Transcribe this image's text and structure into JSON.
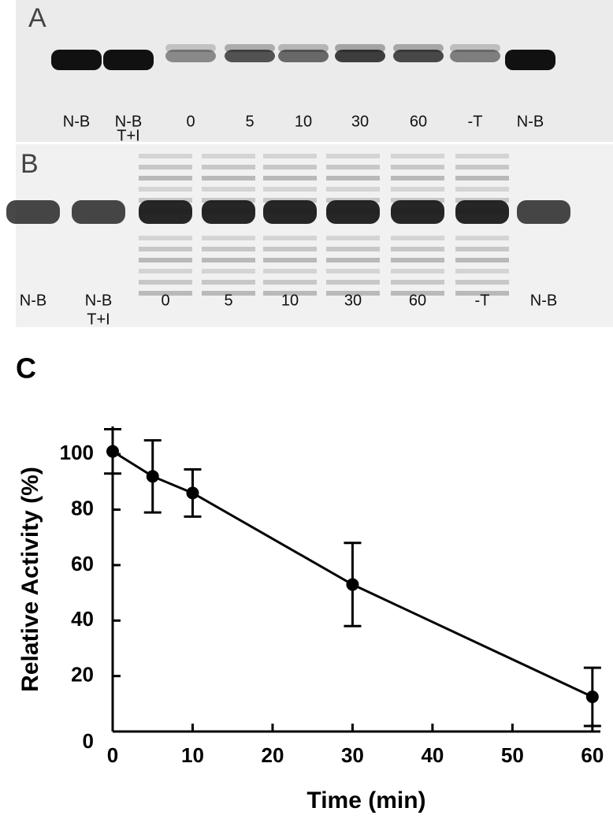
{
  "gel_a": {
    "label": "A",
    "lanes": [
      [
        "N-B"
      ],
      [
        "N-B",
        "T+I"
      ],
      [
        "0"
      ],
      [
        "5"
      ],
      [
        "10"
      ],
      [
        "30"
      ],
      [
        "60"
      ],
      [
        "-T"
      ],
      [
        "N-B"
      ]
    ]
  },
  "gel_b": {
    "label": "B",
    "lanes": [
      [
        "N-B"
      ],
      [
        "N-B",
        "T+I"
      ],
      [
        "0"
      ],
      [
        "5"
      ],
      [
        "10"
      ],
      [
        "30"
      ],
      [
        "60"
      ],
      [
        "-T"
      ],
      [
        "N-B"
      ]
    ]
  },
  "chart_data": {
    "type": "line",
    "panel_label": "C",
    "x_label": "Time (min)",
    "y_label": "Relative Activity (%)",
    "x": [
      0,
      5,
      10,
      30,
      60
    ],
    "values": [
      101,
      92,
      86,
      53,
      12.5
    ],
    "errors": [
      8,
      13,
      8.5,
      15,
      10.5
    ],
    "color": "#000000",
    "xlim": [
      0,
      61
    ],
    "ylim": [
      0,
      110
    ],
    "xticks": [
      0,
      10,
      20,
      30,
      40,
      50,
      60
    ],
    "yticks": [
      0,
      20,
      40,
      60,
      80,
      100
    ]
  }
}
